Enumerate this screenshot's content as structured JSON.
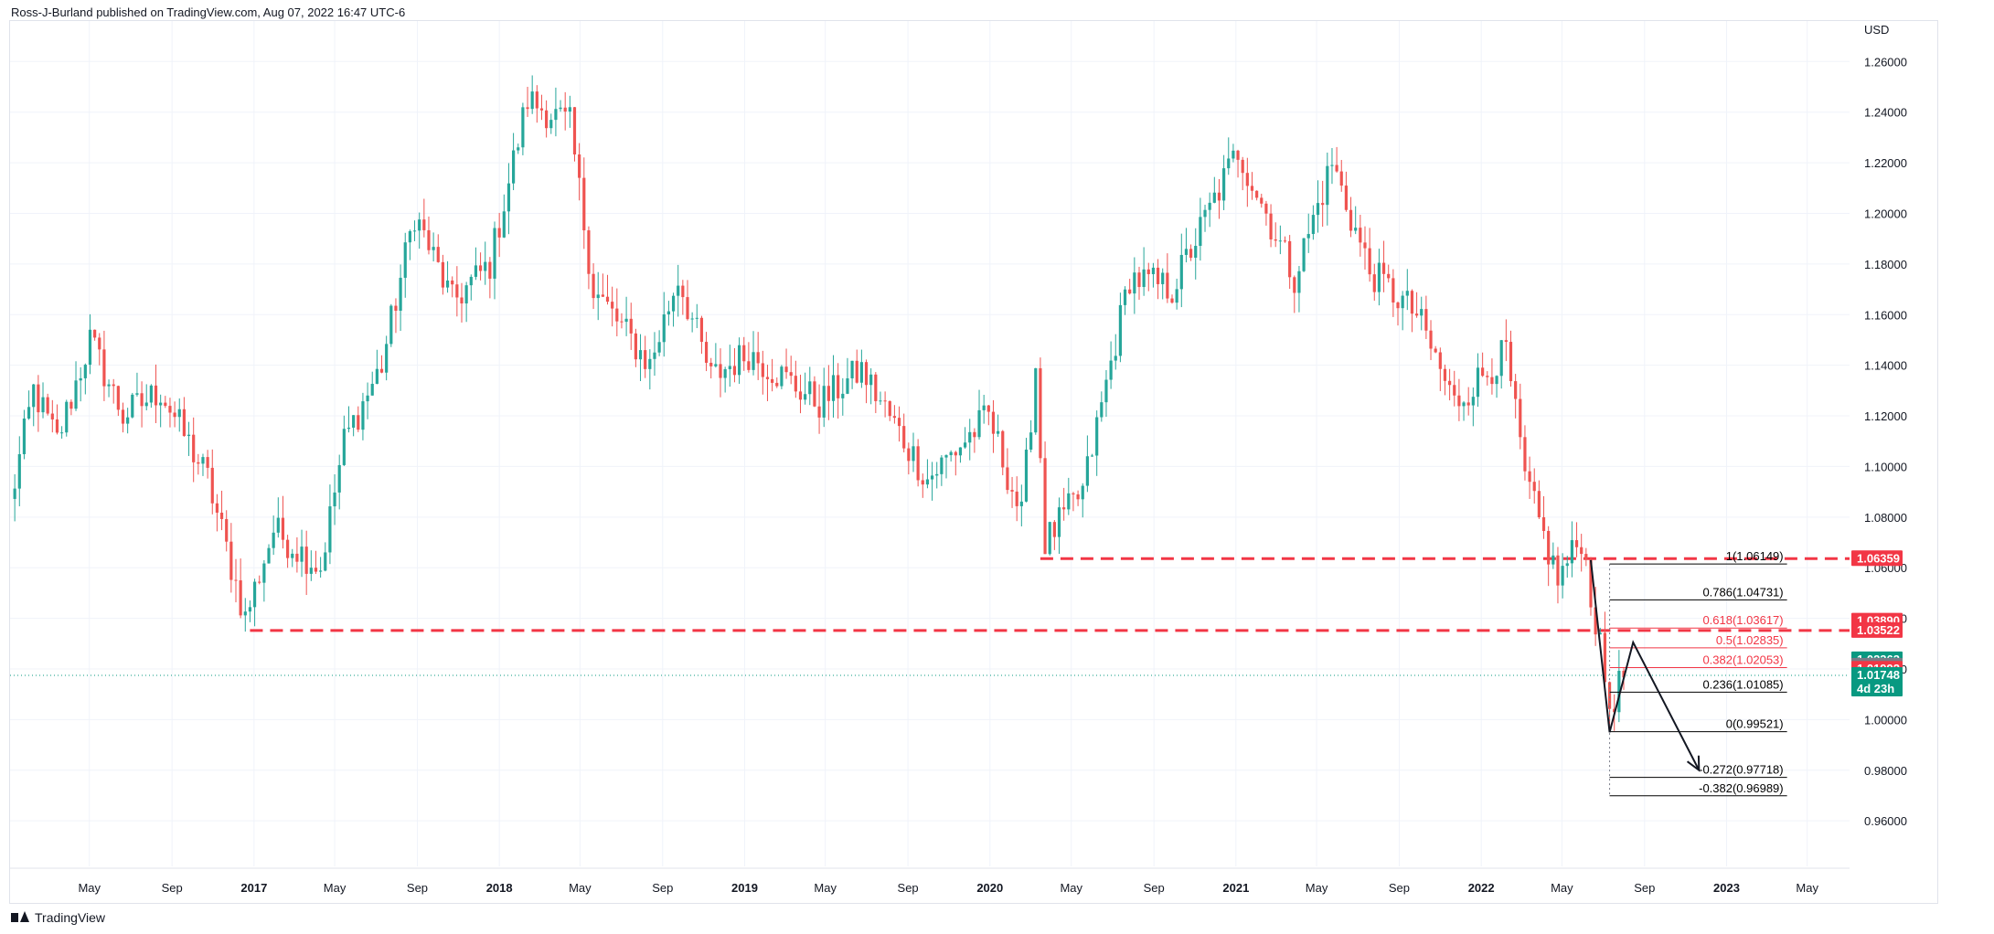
{
  "header": {
    "publisher_line": "Ross-J-Burland published on TradingView.com, Aug 07, 2022 16:47 UTC-6"
  },
  "footer": {
    "logo_text": "TradingView",
    "logo_icon": "tradingview-logo-icon"
  },
  "colors": {
    "up": "#26a69a",
    "down": "#ef5350",
    "dashed": "#f23645",
    "fib_line": "#000000",
    "current_price": "#089981"
  },
  "chart_data": {
    "type": "candlestick",
    "timeframe": "1W",
    "currency_label": "USD",
    "ylim": [
      0.942,
      1.276
    ],
    "xlim": [
      "2016-01-04",
      "2023-07-03"
    ],
    "y_ticks": [
      "1.26000",
      "1.24000",
      "1.22000",
      "1.20000",
      "1.18000",
      "1.16000",
      "1.14000",
      "1.12000",
      "1.10000",
      "1.08000",
      "1.06000",
      "1.04000",
      "1.02000",
      "1.00000",
      "0.98000",
      "0.96000"
    ],
    "y_tick_values": [
      1.26,
      1.24,
      1.22,
      1.2,
      1.18,
      1.16,
      1.14,
      1.12,
      1.1,
      1.08,
      1.06,
      1.04,
      1.02,
      1.0,
      0.98,
      0.96
    ],
    "x_ticks": [
      {
        "label": "May",
        "date": "2016-05-01"
      },
      {
        "label": "Sep",
        "date": "2016-09-01"
      },
      {
        "label": "2017",
        "date": "2017-01-01",
        "bold": true
      },
      {
        "label": "May",
        "date": "2017-05-01"
      },
      {
        "label": "Sep",
        "date": "2017-09-01"
      },
      {
        "label": "2018",
        "date": "2018-01-01",
        "bold": true
      },
      {
        "label": "May",
        "date": "2018-05-01"
      },
      {
        "label": "Sep",
        "date": "2018-09-01"
      },
      {
        "label": "2019",
        "date": "2019-01-01",
        "bold": true
      },
      {
        "label": "May",
        "date": "2019-05-01"
      },
      {
        "label": "Sep",
        "date": "2019-09-01"
      },
      {
        "label": "2020",
        "date": "2020-01-01",
        "bold": true
      },
      {
        "label": "May",
        "date": "2020-05-01"
      },
      {
        "label": "Sep",
        "date": "2020-09-01"
      },
      {
        "label": "2021",
        "date": "2021-01-01",
        "bold": true
      },
      {
        "label": "May",
        "date": "2021-05-01"
      },
      {
        "label": "Sep",
        "date": "2021-09-01"
      },
      {
        "label": "2022",
        "date": "2022-01-01",
        "bold": true
      },
      {
        "label": "May",
        "date": "2022-05-01"
      },
      {
        "label": "Sep",
        "date": "2022-09-01"
      },
      {
        "label": "2023",
        "date": "2023-01-01",
        "bold": true
      },
      {
        "label": "May",
        "date": "2023-05-01"
      }
    ],
    "price_anchors": [
      {
        "date": "2016-01-04",
        "close": 1.085
      },
      {
        "date": "2016-02-08",
        "close": 1.13
      },
      {
        "date": "2016-03-14",
        "close": 1.11
      },
      {
        "date": "2016-05-02",
        "close": 1.15
      },
      {
        "date": "2016-06-20",
        "close": 1.12
      },
      {
        "date": "2016-08-15",
        "close": 1.13
      },
      {
        "date": "2016-10-24",
        "close": 1.095
      },
      {
        "date": "2016-12-19",
        "close": 1.04
      },
      {
        "date": "2017-01-30",
        "close": 1.075
      },
      {
        "date": "2017-04-10",
        "close": 1.06
      },
      {
        "date": "2017-05-15",
        "close": 1.11
      },
      {
        "date": "2017-07-10",
        "close": 1.14
      },
      {
        "date": "2017-08-28",
        "close": 1.2
      },
      {
        "date": "2017-10-23",
        "close": 1.165
      },
      {
        "date": "2017-12-18",
        "close": 1.18
      },
      {
        "date": "2018-02-12",
        "close": 1.245
      },
      {
        "date": "2018-04-16",
        "close": 1.235
      },
      {
        "date": "2018-05-21",
        "close": 1.17
      },
      {
        "date": "2018-08-13",
        "close": 1.14
      },
      {
        "date": "2018-09-24",
        "close": 1.175
      },
      {
        "date": "2018-11-12",
        "close": 1.135
      },
      {
        "date": "2019-01-07",
        "close": 1.145
      },
      {
        "date": "2019-04-22",
        "close": 1.125
      },
      {
        "date": "2019-06-24",
        "close": 1.138
      },
      {
        "date": "2019-09-30",
        "close": 1.095
      },
      {
        "date": "2019-12-30",
        "close": 1.12
      },
      {
        "date": "2020-02-17",
        "close": 1.08
      },
      {
        "date": "2020-03-09",
        "close": 1.14
      },
      {
        "date": "2020-03-23",
        "close": 1.07
      },
      {
        "date": "2020-05-18",
        "close": 1.09
      },
      {
        "date": "2020-07-27",
        "close": 1.175
      },
      {
        "date": "2020-09-28",
        "close": 1.17
      },
      {
        "date": "2021-01-04",
        "close": 1.225
      },
      {
        "date": "2021-03-29",
        "close": 1.175
      },
      {
        "date": "2021-05-24",
        "close": 1.22
      },
      {
        "date": "2021-07-19",
        "close": 1.177
      },
      {
        "date": "2021-09-27",
        "close": 1.16
      },
      {
        "date": "2021-11-22",
        "close": 1.125
      },
      {
        "date": "2022-02-07",
        "close": 1.145
      },
      {
        "date": "2022-03-07",
        "close": 1.095
      },
      {
        "date": "2022-04-25",
        "close": 1.055
      },
      {
        "date": "2022-05-30",
        "close": 1.072
      },
      {
        "date": "2022-07-11",
        "close": 1.005
      },
      {
        "date": "2022-08-01",
        "close": 1.0175
      }
    ],
    "horizontal_levels": [
      {
        "name": "dashed-level-upper",
        "value": 1.0636,
        "from": "2020-03-16",
        "to": "2023-07-03",
        "style": "dashed"
      },
      {
        "name": "dashed-level-lower",
        "value": 1.0352,
        "from": "2016-12-26",
        "to": "2023-07-03",
        "style": "dashed"
      }
    ],
    "current_price_line": {
      "value": 1.01748,
      "style": "dotted"
    },
    "fibonacci": {
      "from_date": "2022-07-11",
      "to_date": "2023-04-01",
      "levels": [
        {
          "ratio": "1",
          "label": "1(1.06149)",
          "value": 1.06149
        },
        {
          "ratio": "0.786",
          "label": "0.786(1.04731)",
          "value": 1.04731
        },
        {
          "ratio": "0.618",
          "label": "0.618(1.03617)",
          "value": 1.03617,
          "color": "#f23645"
        },
        {
          "ratio": "0.5",
          "label": "0.5(1.02835)",
          "value": 1.02835,
          "color": "#f23645"
        },
        {
          "ratio": "0.382",
          "label": "0.382(1.02053)",
          "value": 1.02053,
          "color": "#f23645"
        },
        {
          "ratio": "0.236",
          "label": "0.236(1.01085)",
          "value": 1.01085
        },
        {
          "ratio": "0",
          "label": "0(0.99521)",
          "value": 0.99521
        },
        {
          "ratio": "-0.272",
          "label": "-0.272(0.97718)",
          "value": 0.97718
        },
        {
          "ratio": "-0.382",
          "label": "-0.382(0.96989)",
          "value": 0.96989
        }
      ]
    },
    "projection_path": [
      {
        "date": "2022-06-13",
        "price": 1.063
      },
      {
        "date": "2022-07-11",
        "price": 0.995
      },
      {
        "date": "2022-08-15",
        "price": 1.0305
      },
      {
        "date": "2022-11-21",
        "price": 0.98
      }
    ],
    "price_tags": [
      {
        "value": 1.06359,
        "label": "1.06359",
        "color": "#f23645"
      },
      {
        "value": 1.0389,
        "label": "1.03890",
        "color": "#f23645"
      },
      {
        "value": 1.03522,
        "label": "1.03522",
        "color": "#f23645"
      },
      {
        "value": 1.02363,
        "label": "1.02363",
        "color": "#089981"
      },
      {
        "value": 1.02113,
        "label": "1.02113",
        "color": "#787b86"
      },
      {
        "value": 1.01992,
        "label": "1.01992",
        "color": "#f23645"
      },
      {
        "value": 1.01748,
        "label": "1.01748",
        "sublabel": "4d 23h",
        "color": "#089981"
      }
    ]
  }
}
